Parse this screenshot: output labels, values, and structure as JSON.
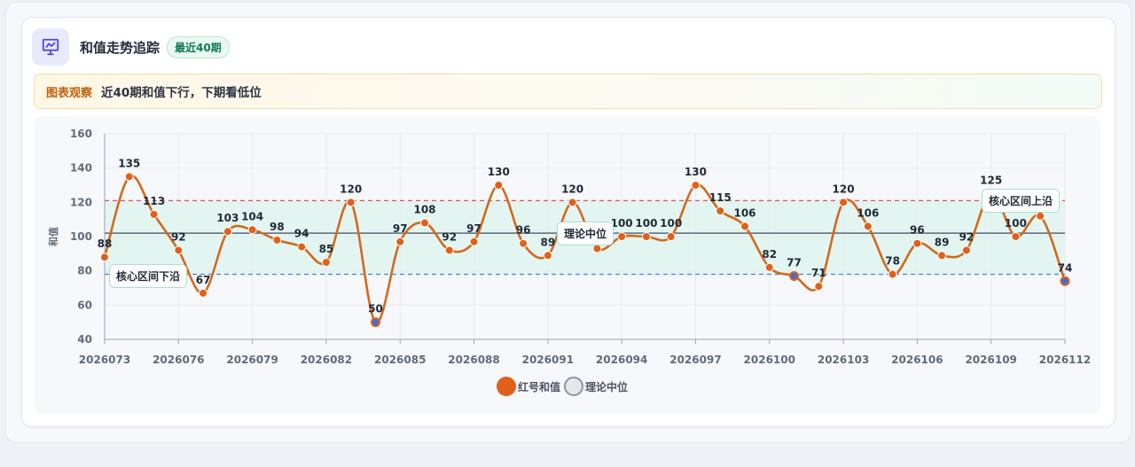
{
  "header": {
    "title": "和值走势追踪",
    "badge": "最近40期",
    "icon": "presentation-chart-icon"
  },
  "observation": {
    "tag": "图表观察",
    "text": "近40期和值下行，下期看低位"
  },
  "colors": {
    "line": "#d2691e",
    "point": "#e0601a",
    "lowPoint": "#3b6fd8",
    "band": "#dff5ee",
    "upper": "#e05252",
    "lower": "#4a7fe0",
    "median": "#5b6676"
  },
  "chart_data": {
    "type": "line",
    "x": [
      "2026073",
      "2026074",
      "2026075",
      "2026076",
      "2026077",
      "2026078",
      "2026079",
      "2026080",
      "2026081",
      "2026082",
      "2026083",
      "2026084",
      "2026085",
      "2026086",
      "2026087",
      "2026088",
      "2026089",
      "2026090",
      "2026091",
      "2026092",
      "2026093",
      "2026094",
      "2026095",
      "2026096",
      "2026097",
      "2026098",
      "2026099",
      "2026100",
      "2026101",
      "2026102",
      "2026103",
      "2026104",
      "2026105",
      "2026106",
      "2026107",
      "2026108",
      "2026109",
      "2026110",
      "2026111",
      "2026112"
    ],
    "xticks": [
      "2026073",
      "2026076",
      "2026079",
      "2026082",
      "2026085",
      "2026088",
      "2026091",
      "2026094",
      "2026097",
      "2026100",
      "2026103",
      "2026106",
      "2026109",
      "2026112"
    ],
    "series": [
      {
        "name": "红号和值",
        "values": [
          88,
          135,
          113,
          92,
          67,
          103,
          104,
          98,
          94,
          85,
          120,
          50,
          97,
          108,
          92,
          97,
          130,
          96,
          89,
          120,
          93,
          100,
          100,
          100,
          130,
          115,
          106,
          82,
          77,
          71,
          120,
          106,
          78,
          96,
          89,
          92,
          125,
          100,
          112,
          74
        ]
      }
    ],
    "median_series_name": "理论中位",
    "ylabel": "和值",
    "ylim": [
      40,
      160
    ],
    "yticks": [
      40,
      60,
      80,
      100,
      120,
      140,
      160
    ],
    "band": [
      78,
      121
    ],
    "median": 102,
    "low_points": [
      "2026084",
      "2026101"
    ],
    "annotations": {
      "lower": "核心区间下沿",
      "median": "理论中位",
      "upper": "核心区间上沿"
    },
    "legend_position": "bottom",
    "grid": true
  }
}
